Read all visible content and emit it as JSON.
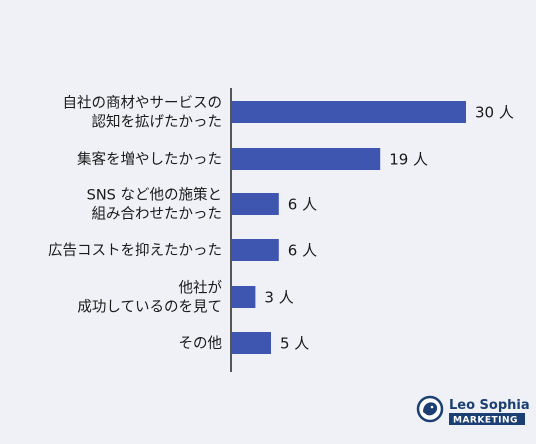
{
  "chart_data": {
    "type": "bar",
    "orientation": "horizontal",
    "categories": [
      [
        "自社の商材やサービスの",
        "認知を拡げたかった"
      ],
      [
        "集客を増やしたかった"
      ],
      [
        "SNS など他の施策と",
        "組み合わせたかった"
      ],
      [
        "広告コストを抑えたかった"
      ],
      [
        "他社が",
        "成功しているのを見て"
      ],
      [
        "その他"
      ]
    ],
    "values": [
      30,
      19,
      6,
      6,
      3,
      5
    ],
    "value_labels": [
      "30 人",
      "19 人",
      "6 人",
      "6 人",
      "3 人",
      "5 人"
    ],
    "xlim": [
      0,
      30
    ],
    "grid": false,
    "bar_color": "#3f56b0"
  },
  "logo": {
    "name": "Leo Sophia",
    "subtitle": "MARKETING",
    "color": "#1b3f73"
  }
}
